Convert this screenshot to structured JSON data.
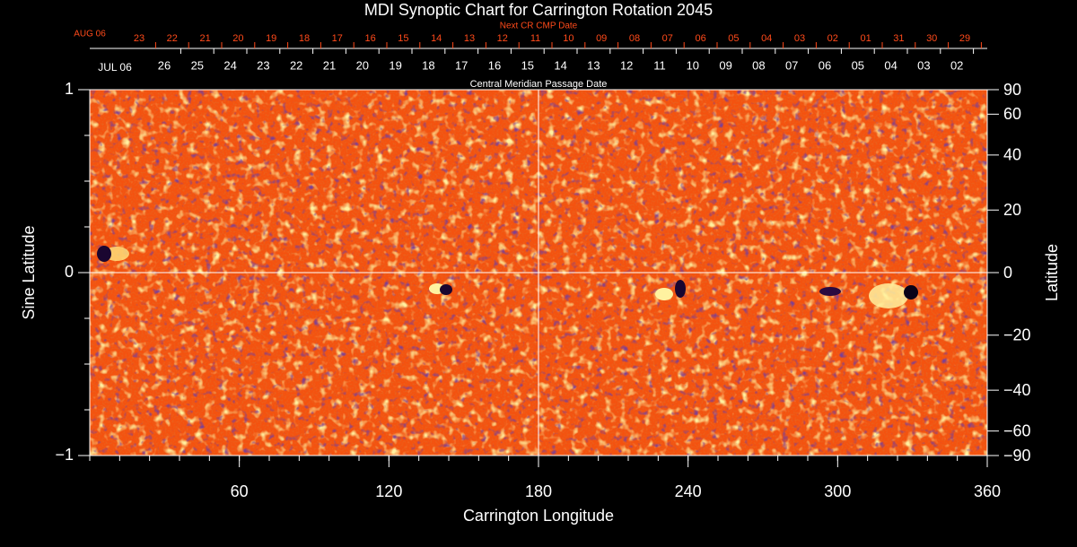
{
  "chart_data": {
    "type": "image",
    "title": "MDI Synoptic Chart for Carrington Rotation 2045",
    "xlabel": "Carrington Longitude",
    "ylabel": "Sine Latitude",
    "y2label": "Latitude",
    "xlim": [
      0,
      360
    ],
    "xticks": [
      60,
      120,
      180,
      240,
      300,
      360
    ],
    "ylim": [
      -1,
      1
    ],
    "yticks": [
      {
        "value": -1,
        "label": "−1"
      },
      0,
      1
    ],
    "y2lim": [
      -90,
      90
    ],
    "y2ticks": [
      90,
      60,
      40,
      20,
      0,
      {
        "value": -20,
        "label": "−20"
      },
      {
        "value": -40,
        "label": "−40"
      },
      {
        "value": -60,
        "label": "−60"
      },
      {
        "value": -90,
        "label": "−90"
      }
    ],
    "next_cr_axis": {
      "title": "Next CR CMP Date",
      "start_label": "AUG 06",
      "dates": [
        "23",
        "22",
        "21",
        "20",
        "19",
        "18",
        "17",
        "16",
        "15",
        "14",
        "13",
        "12",
        "11",
        "10",
        "09",
        "08",
        "07",
        "06",
        "05",
        "04",
        "03",
        "02",
        "01",
        "31",
        "30",
        "29"
      ]
    },
    "cmp_axis": {
      "title": "Central Meridian Passage Date",
      "start_label": "JUL 06",
      "dates": [
        "26",
        "25",
        "24",
        "23",
        "22",
        "21",
        "20",
        "19",
        "18",
        "17",
        "16",
        "15",
        "14",
        "13",
        "12",
        "11",
        "10",
        "09",
        "08",
        "07",
        "06",
        "05",
        "04",
        "03",
        "02"
      ]
    }
  }
}
